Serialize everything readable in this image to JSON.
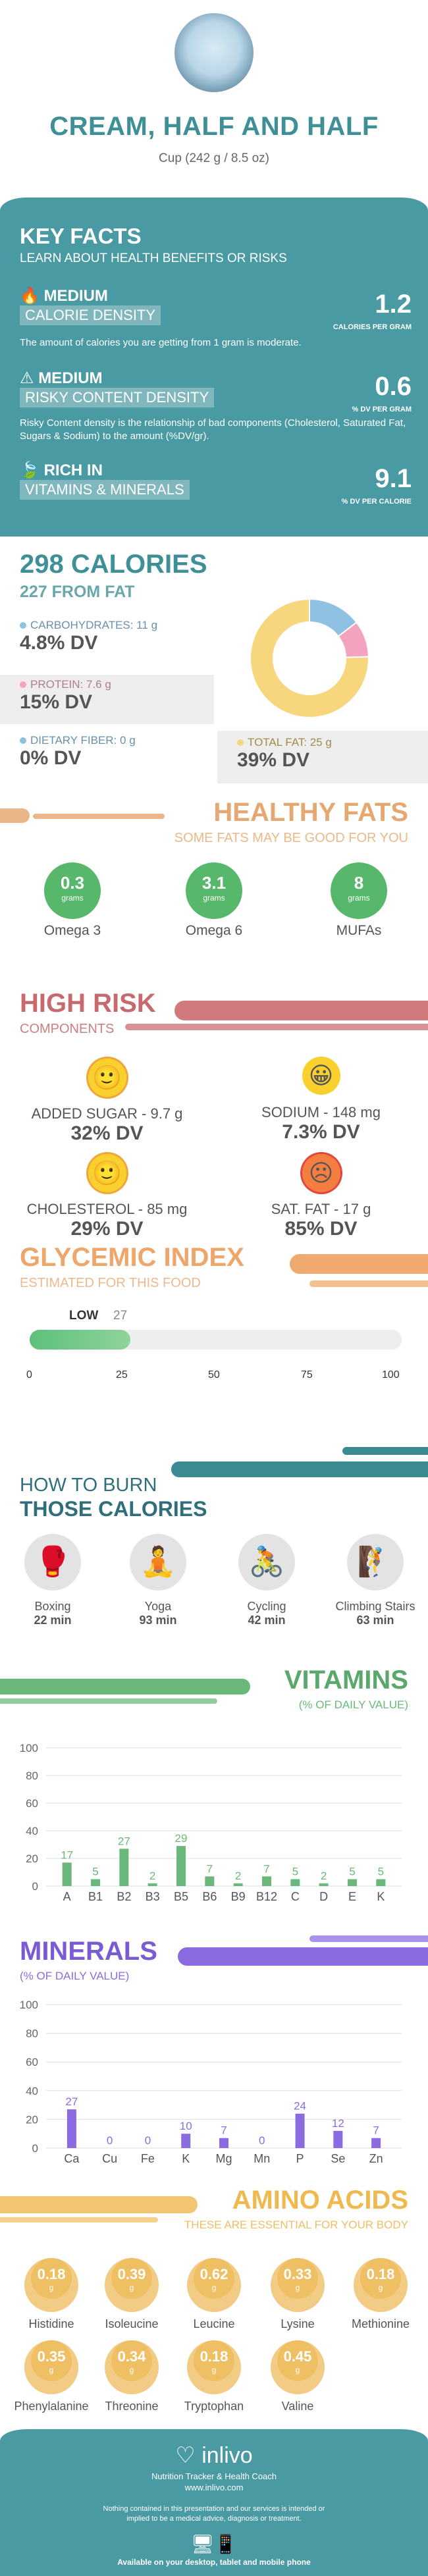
{
  "header": {
    "title": "CREAM, HALF AND HALF",
    "serving": "Cup (242 g / 8.5 oz)"
  },
  "key_facts": {
    "title": "KEY FACTS",
    "subtitle": "LEARN ABOUT HEALTH BENEFITS OR RISKS",
    "items": [
      {
        "level": "MEDIUM",
        "name": "CALORIE DENSITY",
        "value": "1.2",
        "unit": "CALORIES PER GRAM",
        "desc": "The amount of calories you are getting from 1 gram is moderate."
      },
      {
        "level": "MEDIUM",
        "name": "RISKY CONTENT DENSITY",
        "value": "0.6",
        "unit": "% DV PER GRAM",
        "desc": "Risky Content density is the relationship of bad components (Cholesterol, Saturated Fat, Sugars & Sodium) to the amount (%DV/gr)."
      },
      {
        "level": "RICH  IN",
        "name": "VITAMINS & MINERALS",
        "value": "9.1",
        "unit": "% DV PER CALORIE",
        "desc": ""
      }
    ]
  },
  "calories": {
    "title": "298 CALORIES",
    "from_fat": "227 FROM FAT",
    "carbs_label": "CARBOHYDRATES: 11 g",
    "carbs_dv": "4.8% DV",
    "protein_label": "PROTEIN: 7.6 g",
    "protein_dv": "15% DV",
    "fiber_label": "DIETARY FIBER: 0 g",
    "fiber_dv": "0% DV",
    "fat_label": "TOTAL FAT: 25 g",
    "fat_dv": "39% DV",
    "colors": {
      "carbs": "#8fc1e3",
      "protein": "#f3a3c0",
      "fat": "#f7d67e",
      "fiber": "#8fc1e3"
    },
    "donut": [
      {
        "name": "carbs",
        "value": 44
      },
      {
        "name": "protein",
        "value": 30
      },
      {
        "name": "fat",
        "value": 227
      }
    ]
  },
  "healthy_fats": {
    "title": "HEALTHY FATS",
    "subtitle": "SOME FATS MAY BE GOOD FOR YOU",
    "items": [
      {
        "value": "0.3",
        "unit": "grams",
        "name": "Omega 3"
      },
      {
        "value": "3.1",
        "unit": "grams",
        "name": "Omega 6"
      },
      {
        "value": "8",
        "unit": "grams",
        "name": "MUFAs"
      }
    ]
  },
  "high_risk": {
    "title": "HIGH RISK",
    "subtitle": "COMPONENTS",
    "items": [
      {
        "label": "ADDED SUGAR - 9.7 g",
        "dv": "32% DV",
        "face": "neutral"
      },
      {
        "label": "SODIUM - 148 mg",
        "dv": "7.3% DV",
        "face": "happy"
      },
      {
        "label": "CHOLESTEROL - 85 mg",
        "dv": "29% DV",
        "face": "neutral"
      },
      {
        "label": "SAT. FAT - 17 g",
        "dv": "85% DV",
        "face": "sad"
      }
    ]
  },
  "glycemic": {
    "title": "GLYCEMIC INDEX",
    "subtitle": "ESTIMATED FOR THIS FOOD",
    "level": "LOW",
    "value": 27,
    "value_label": "27",
    "ticks": [
      "0",
      "25",
      "50",
      "75",
      "100"
    ]
  },
  "burn": {
    "title1": "HOW TO BURN",
    "title2": "THOSE CALORIES",
    "items": [
      {
        "name": "Boxing",
        "time": "22 min"
      },
      {
        "name": "Yoga",
        "time": "93 min"
      },
      {
        "name": "Cycling",
        "time": "42 min"
      },
      {
        "name": "Climbing Stairs",
        "time": "63 min"
      }
    ]
  },
  "vitamins": {
    "title": "VITAMINS",
    "subtitle": "(% OF DAILY VALUE)",
    "color": "#6bb97a",
    "chart_data": {
      "type": "bar",
      "categories": [
        "A",
        "B1",
        "B2",
        "B3",
        "B5",
        "B6",
        "B9",
        "B12",
        "C",
        "D",
        "E",
        "K"
      ],
      "values": [
        17,
        5,
        27,
        2,
        29,
        7,
        2,
        7,
        5,
        2,
        5,
        5
      ],
      "ylim": [
        0,
        100
      ],
      "yticks": [
        "0",
        "20",
        "40",
        "60",
        "80",
        "100"
      ]
    }
  },
  "minerals": {
    "title": "MINERALS",
    "subtitle": "(% OF DAILY VALUE)",
    "color": "#8a6be0",
    "chart_data": {
      "type": "bar",
      "categories": [
        "Ca",
        "Cu",
        "Fe",
        "K",
        "Mg",
        "Mn",
        "P",
        "Se",
        "Zn"
      ],
      "values": [
        27,
        0,
        0,
        10,
        7,
        0,
        24,
        12,
        7
      ],
      "ylim": [
        0,
        100
      ],
      "yticks": [
        "0",
        "20",
        "40",
        "60",
        "80",
        "100"
      ]
    }
  },
  "amino": {
    "title": "AMINO ACIDS",
    "subtitle": "THESE ARE ESSENTIAL FOR YOUR BODY",
    "items": [
      {
        "value": "0.18",
        "unit": "g",
        "name": "Histidine"
      },
      {
        "value": "0.39",
        "unit": "g",
        "name": "Isoleucine"
      },
      {
        "value": "0.62",
        "unit": "g",
        "name": "Leucine"
      },
      {
        "value": "0.33",
        "unit": "g",
        "name": "Lysine"
      },
      {
        "value": "0.18",
        "unit": "g",
        "name": "Methionine"
      },
      {
        "value": "0.35",
        "unit": "g",
        "name": "Phenylalanine"
      },
      {
        "value": "0.34",
        "unit": "g",
        "name": "Threonine"
      },
      {
        "value": "0.18",
        "unit": "g",
        "name": "Tryptophan"
      },
      {
        "value": "0.45",
        "unit": "g",
        "name": "Valine"
      }
    ]
  },
  "footer": {
    "brand": "inlivo",
    "tagline": "Nutrition Tracker & Health Coach",
    "url": "www.inlivo.com",
    "disclaimer": "Nothing contained in this presentation and our services is intended or implied to be a medical advice, diagnosis or treatment.",
    "devices": "Available on your desktop, tablet and mobile phone"
  }
}
